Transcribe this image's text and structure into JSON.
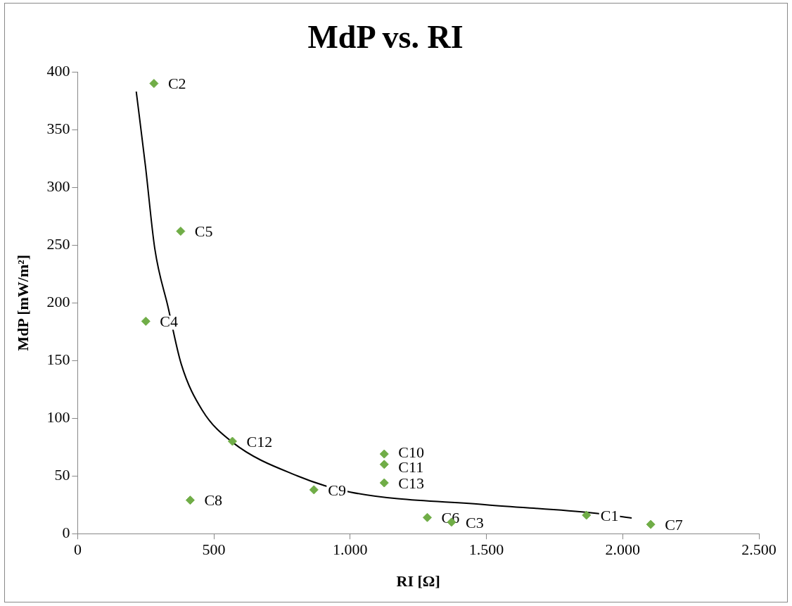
{
  "chart_data": {
    "type": "scatter",
    "title": "MdP vs. RI",
    "xlabel": "RI [Ω]",
    "ylabel": "MdP [mW/m²]",
    "xlim": [
      0,
      2500
    ],
    "ylim": [
      0,
      400
    ],
    "xticks": [
      0,
      500,
      {
        "value": 1000,
        "label": "1.000"
      },
      {
        "value": 1500,
        "label": "1.500"
      },
      {
        "value": 2000,
        "label": "2.000"
      },
      {
        "value": 2500,
        "label": "2.500"
      }
    ],
    "yticks": [
      0,
      50,
      100,
      150,
      200,
      250,
      300,
      350,
      400
    ],
    "grid": false,
    "legend": false,
    "marker": "diamond",
    "series": [
      {
        "color": "#70ad47",
        "x": [
          1867,
          280,
          1372,
          250,
          378,
          1283,
          2103,
          413,
          867,
          1125,
          1125,
          568,
          1125
        ],
        "values": [
          16,
          390,
          10,
          184,
          262,
          14,
          8,
          29,
          38,
          69,
          60,
          80,
          44
        ]
      },
      {
        "type": "line",
        "color": "#000000",
        "marker": "none",
        "x": [
          215,
          249,
          283,
          332,
          380,
          457,
          569,
          807,
          1001,
          1500,
          1889,
          2033
        ],
        "values": [
          383,
          318,
          247,
          196,
          147,
          107,
          79,
          50,
          36,
          25,
          18,
          13.5
        ]
      }
    ],
    "annotations": [
      {
        "text": "C1",
        "x": 1867,
        "y": 16
      },
      {
        "text": "C2",
        "x": 280,
        "y": 390
      },
      {
        "text": "C3",
        "x": 1372,
        "y": 10
      },
      {
        "text": "C4",
        "x": 250,
        "y": 184
      },
      {
        "text": "C5",
        "x": 378,
        "y": 262
      },
      {
        "text": "C6",
        "x": 1283,
        "y": 14
      },
      {
        "text": "C7",
        "x": 2103,
        "y": 8
      },
      {
        "text": "C8",
        "x": 413,
        "y": 29
      },
      {
        "text": "C9",
        "x": 867,
        "y": 38
      },
      {
        "text": "C10",
        "x": 1125,
        "y": 69
      },
      {
        "text": "C11",
        "x": 1125,
        "y": 60
      },
      {
        "text": "C12",
        "x": 568,
        "y": 80
      },
      {
        "text": "C13",
        "x": 1125,
        "y": 44
      }
    ]
  }
}
